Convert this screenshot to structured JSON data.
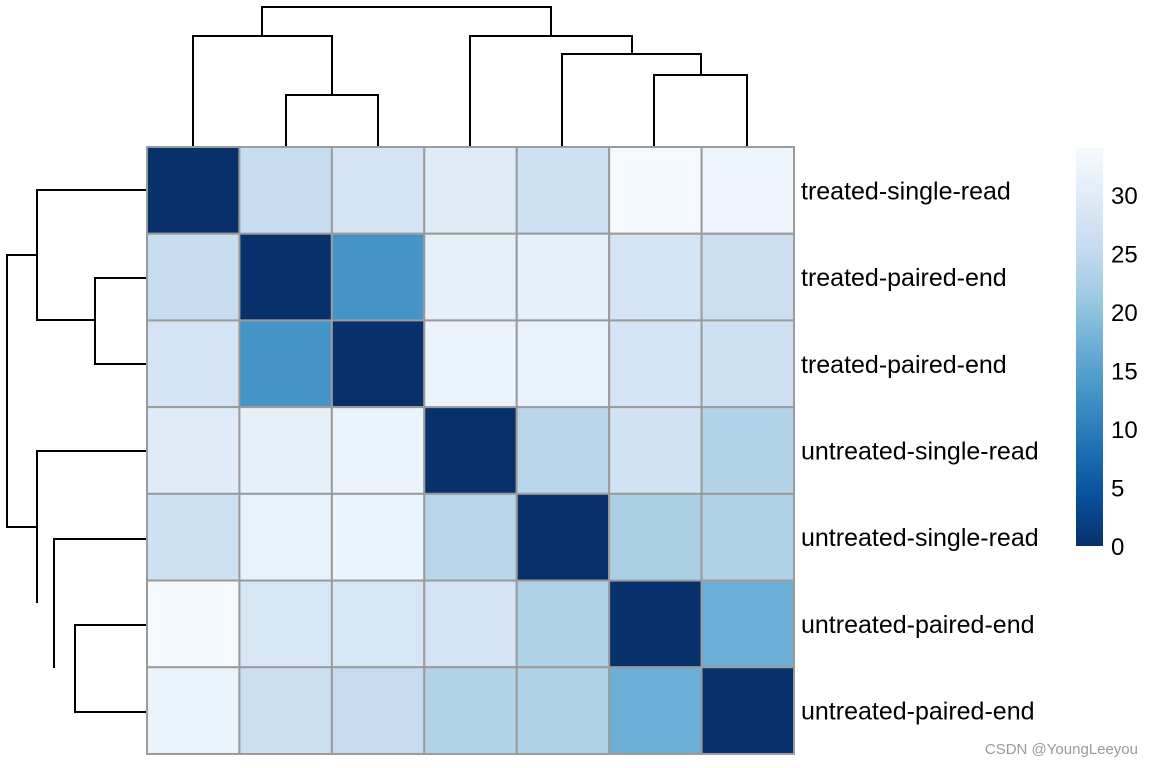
{
  "chart_data": {
    "type": "heatmap",
    "title": "",
    "rows": [
      "treated-single-read",
      "treated-paired-end",
      "treated-paired-end",
      "untreated-single-read",
      "untreated-single-read",
      "untreated-paired-end",
      "untreated-paired-end"
    ],
    "values": [
      [
        0,
        26,
        28,
        30,
        27,
        33.5,
        32.5
      ],
      [
        26,
        0,
        13,
        31,
        31,
        28,
        26.5
      ],
      [
        28,
        13,
        0,
        32,
        31.5,
        28,
        27
      ],
      [
        30,
        31,
        32,
        0,
        24,
        27.5,
        23.5
      ],
      [
        27,
        31.5,
        32,
        24,
        0,
        22.5,
        23
      ],
      [
        33.5,
        28.5,
        28.5,
        28,
        23,
        0,
        17
      ],
      [
        32,
        26.5,
        25.5,
        23.5,
        23,
        17,
        0
      ]
    ],
    "colorbar": {
      "ticks": [
        0,
        5,
        10,
        15,
        20,
        25,
        30
      ],
      "range": [
        0,
        34
      ],
      "colors": [
        "#08306b",
        "#08519c",
        "#2171b5",
        "#4292c6",
        "#6baed6",
        "#9ecae1",
        "#c6dbef",
        "#deebf7",
        "#f7fbff"
      ]
    },
    "dendrogram": {
      "order": [
        "treated-single-read",
        "treated-paired-end",
        "treated-paired-end",
        "untreated-single-read",
        "untreated-single-read",
        "untreated-paired-end",
        "untreated-paired-end"
      ],
      "merges": [
        {
          "left": 6,
          "right": 7,
          "height": 17
        },
        {
          "left": 2,
          "right": 3,
          "height": 13
        },
        {
          "left": 5,
          "right": -1,
          "height": 22.5
        },
        {
          "left": 1,
          "right": -2,
          "height": 26
        },
        {
          "left": 4,
          "right": -3,
          "height": 27
        },
        {
          "left": -4,
          "right": -5,
          "height": 34
        }
      ]
    }
  },
  "watermark": "CSDN @YoungLeeyou"
}
